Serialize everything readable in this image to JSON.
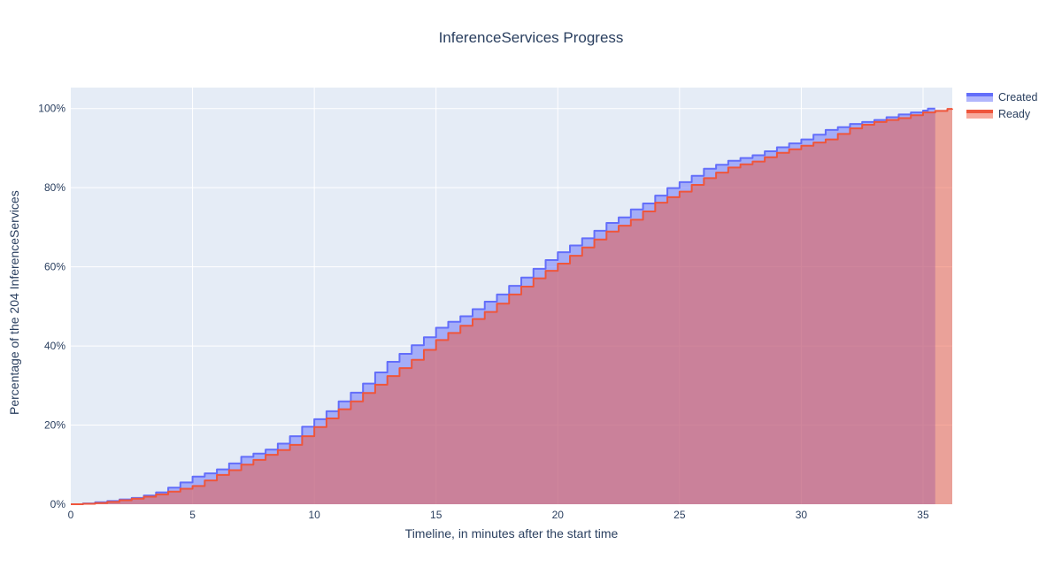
{
  "title": "InferenceServices Progress",
  "colors": {
    "text": "#2a3f5f",
    "plot_background": "#e5ecf6",
    "gridline": "#ffffff",
    "created_line": "#636efa",
    "ready_line": "#EF553B",
    "fill_opacity": 0.5
  },
  "legend": {
    "items": [
      {
        "label": "Created",
        "swatch": "blue-area-swatch"
      },
      {
        "label": "Ready",
        "swatch": "red-area-swatch"
      }
    ]
  },
  "chart_data": {
    "type": "area",
    "title": "InferenceServices Progress",
    "xlabel": "Timeline, in minutes after the start time",
    "ylabel": "Percentage of the 204 InferenceServices",
    "total_services": 204,
    "xlim": [
      0,
      36.2
    ],
    "ylim": [
      0,
      105.3
    ],
    "x_ticks": [
      0,
      5,
      10,
      15,
      20,
      25,
      30,
      35
    ],
    "y_ticks": [
      0,
      20,
      40,
      60,
      80,
      100
    ],
    "y_tick_suffix": "%",
    "grid": true,
    "legend_position": "outside-top-right",
    "line_shape": "step-hv",
    "series": [
      {
        "name": "Created",
        "color": "#636efa",
        "fill_opacity": 0.5,
        "points": [
          [
            0,
            0
          ],
          [
            0.5,
            0.2
          ],
          [
            1,
            0.5
          ],
          [
            1.5,
            0.8
          ],
          [
            2,
            1.2
          ],
          [
            2.5,
            1.6
          ],
          [
            3,
            2.2
          ],
          [
            3.5,
            3.0
          ],
          [
            4,
            4.2
          ],
          [
            4.5,
            5.5
          ],
          [
            5,
            7.0
          ],
          [
            5.5,
            7.8
          ],
          [
            6,
            8.8
          ],
          [
            6.5,
            10.3
          ],
          [
            7,
            12.0
          ],
          [
            7.5,
            12.8
          ],
          [
            8,
            13.8
          ],
          [
            8.5,
            15.3
          ],
          [
            9,
            17.2
          ],
          [
            9.5,
            19.6
          ],
          [
            10,
            21.5
          ],
          [
            10.5,
            23.5
          ],
          [
            11,
            26.0
          ],
          [
            11.5,
            28.2
          ],
          [
            12,
            30.5
          ],
          [
            12.5,
            33.3
          ],
          [
            13,
            36.0
          ],
          [
            13.5,
            38.0
          ],
          [
            14,
            40.2
          ],
          [
            14.5,
            42.2
          ],
          [
            15,
            44.6
          ],
          [
            15.5,
            46.1
          ],
          [
            16,
            47.5
          ],
          [
            16.5,
            49.3
          ],
          [
            17,
            51.2
          ],
          [
            17.5,
            53.0
          ],
          [
            18,
            55.2
          ],
          [
            18.5,
            57.3
          ],
          [
            19,
            59.5
          ],
          [
            19.5,
            61.7
          ],
          [
            20,
            63.7
          ],
          [
            20.5,
            65.4
          ],
          [
            21,
            67.2
          ],
          [
            21.5,
            69.1
          ],
          [
            22,
            71.1
          ],
          [
            22.5,
            72.5
          ],
          [
            23,
            74.5
          ],
          [
            23.5,
            76.0
          ],
          [
            24,
            78.0
          ],
          [
            24.5,
            79.9
          ],
          [
            25,
            81.4
          ],
          [
            25.5,
            83.0
          ],
          [
            26,
            84.8
          ],
          [
            26.5,
            85.8
          ],
          [
            27,
            86.8
          ],
          [
            27.5,
            87.5
          ],
          [
            28,
            88.2
          ],
          [
            28.5,
            89.2
          ],
          [
            29,
            90.2
          ],
          [
            29.5,
            91.2
          ],
          [
            30,
            92.2
          ],
          [
            30.5,
            93.4
          ],
          [
            31,
            94.6
          ],
          [
            31.5,
            95.3
          ],
          [
            32,
            96.1
          ],
          [
            32.5,
            96.6
          ],
          [
            33,
            97.1
          ],
          [
            33.5,
            97.8
          ],
          [
            34,
            98.5
          ],
          [
            34.5,
            99.0
          ],
          [
            35,
            99.5
          ],
          [
            35.2,
            100
          ],
          [
            35.5,
            100
          ]
        ]
      },
      {
        "name": "Ready",
        "color": "#EF553B",
        "fill_opacity": 0.5,
        "points": [
          [
            0,
            0
          ],
          [
            0.5,
            0.1
          ],
          [
            1,
            0.3
          ],
          [
            1.5,
            0.6
          ],
          [
            2,
            1.0
          ],
          [
            2.5,
            1.4
          ],
          [
            3,
            1.9
          ],
          [
            3.5,
            2.5
          ],
          [
            4,
            3.2
          ],
          [
            4.5,
            3.9
          ],
          [
            5,
            4.6
          ],
          [
            5.5,
            6.0
          ],
          [
            6,
            7.4
          ],
          [
            6.5,
            8.6
          ],
          [
            7,
            10.0
          ],
          [
            7.5,
            11.2
          ],
          [
            8,
            12.5
          ],
          [
            8.5,
            13.7
          ],
          [
            9,
            15.0
          ],
          [
            9.5,
            17.2
          ],
          [
            10,
            19.5
          ],
          [
            10.5,
            21.7
          ],
          [
            11,
            24.0
          ],
          [
            11.5,
            26.0
          ],
          [
            12,
            28.1
          ],
          [
            12.5,
            30.2
          ],
          [
            13,
            32.4
          ],
          [
            13.5,
            34.4
          ],
          [
            14,
            36.5
          ],
          [
            14.5,
            39.0
          ],
          [
            15,
            41.5
          ],
          [
            15.5,
            43.3
          ],
          [
            16,
            45.1
          ],
          [
            16.5,
            46.8
          ],
          [
            17,
            48.6
          ],
          [
            17.5,
            50.7
          ],
          [
            18,
            53.0
          ],
          [
            18.5,
            55.0
          ],
          [
            19,
            57.1
          ],
          [
            19.5,
            59.0
          ],
          [
            20,
            60.8
          ],
          [
            20.5,
            62.8
          ],
          [
            21,
            64.9
          ],
          [
            21.5,
            66.9
          ],
          [
            22,
            68.9
          ],
          [
            22.5,
            70.4
          ],
          [
            23,
            71.9
          ],
          [
            23.5,
            74.0
          ],
          [
            24,
            76.2
          ],
          [
            24.5,
            77.6
          ],
          [
            25,
            79.0
          ],
          [
            25.5,
            80.7
          ],
          [
            26,
            82.4
          ],
          [
            26.5,
            83.8
          ],
          [
            27,
            85.1
          ],
          [
            27.5,
            85.9
          ],
          [
            28,
            86.6
          ],
          [
            28.5,
            87.7
          ],
          [
            29,
            88.8
          ],
          [
            29.5,
            89.7
          ],
          [
            30,
            90.6
          ],
          [
            30.5,
            91.4
          ],
          [
            31,
            92.2
          ],
          [
            31.5,
            93.6
          ],
          [
            32,
            95.0
          ],
          [
            32.5,
            95.9
          ],
          [
            33,
            96.6
          ],
          [
            33.5,
            97.1
          ],
          [
            34,
            97.6
          ],
          [
            34.5,
            98.3
          ],
          [
            35,
            99.0
          ],
          [
            35.5,
            99.4
          ],
          [
            36,
            99.9
          ],
          [
            36.2,
            100
          ]
        ]
      }
    ]
  }
}
